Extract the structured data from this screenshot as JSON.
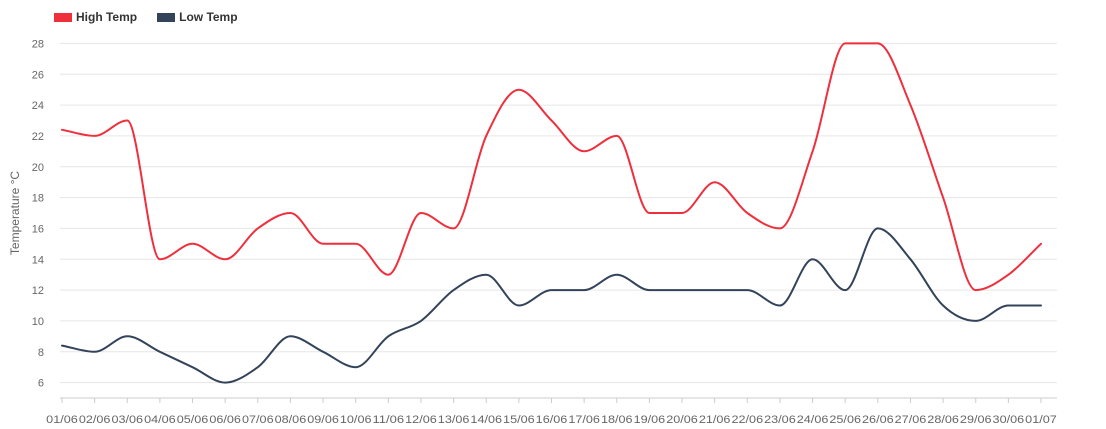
{
  "chart_data": {
    "type": "line",
    "title": "",
    "xlabel": "",
    "ylabel": "Temperature °C",
    "ylim": [
      5,
      29
    ],
    "yticks": [
      6,
      8,
      10,
      12,
      14,
      16,
      18,
      20,
      22,
      24,
      26,
      28
    ],
    "grid": true,
    "legend_position": "top-left",
    "x": [
      "01/06",
      "02/06",
      "03/06",
      "04/06",
      "05/06",
      "06/06",
      "07/06",
      "08/06",
      "09/06",
      "10/06",
      "11/06",
      "12/06",
      "13/06",
      "14/06",
      "15/06",
      "16/06",
      "17/06",
      "18/06",
      "19/06",
      "20/06",
      "21/06",
      "22/06",
      "23/06",
      "24/06",
      "25/06",
      "26/06",
      "27/06",
      "28/06",
      "29/06",
      "30/06",
      "01/07"
    ],
    "series": [
      {
        "name": "High Temp",
        "color": "#ef2f3c",
        "values": [
          22.4,
          22,
          23,
          14,
          15,
          14,
          16,
          17,
          15,
          15,
          13,
          17,
          16,
          22,
          25,
          23,
          21,
          22,
          17,
          17,
          19,
          17,
          16,
          21,
          28,
          28,
          24,
          18,
          12,
          13,
          15
        ]
      },
      {
        "name": "Low Temp",
        "color": "#33435a",
        "values": [
          8.4,
          8,
          9,
          8,
          7,
          6,
          7,
          9,
          8,
          7,
          9,
          10,
          12,
          13,
          11,
          12,
          12,
          13,
          12,
          12,
          12,
          12,
          11,
          14,
          12,
          16,
          14,
          11,
          10,
          11,
          11
        ]
      }
    ]
  }
}
